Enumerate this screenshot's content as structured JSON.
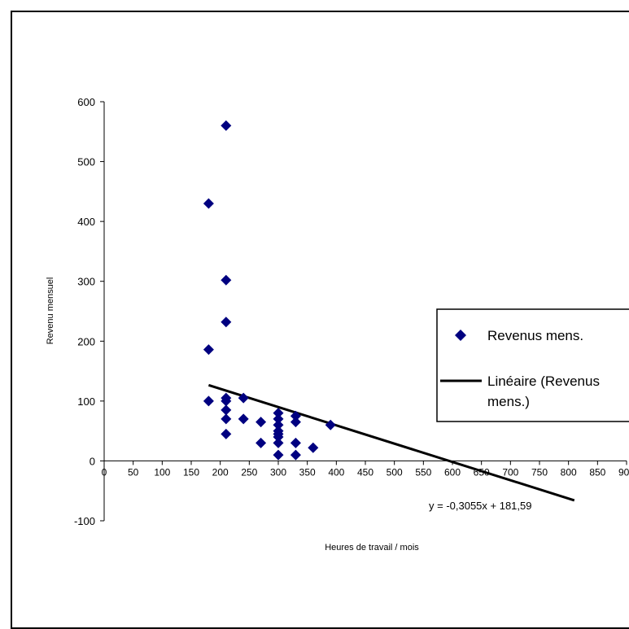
{
  "chart_data": {
    "type": "scatter",
    "xlabel": "Heures de travail / mois",
    "ylabel": "Revenu mensuel",
    "xlim": [
      0,
      900
    ],
    "ylim": [
      -100,
      600
    ],
    "x_ticks": [
      "0",
      "50",
      "100",
      "150",
      "200",
      "250",
      "300",
      "350",
      "400",
      "450",
      "500",
      "550",
      "600",
      "650",
      "700",
      "750",
      "800",
      "850",
      "900"
    ],
    "y_ticks": [
      "-100",
      "0",
      "100",
      "200",
      "300",
      "400",
      "500",
      "600"
    ],
    "grid": false,
    "legend_position": "right",
    "series": [
      {
        "name": "Revenus mens.",
        "color": "#000080",
        "marker": "diamond",
        "points": [
          [
            210,
            560
          ],
          [
            180,
            430
          ],
          [
            210,
            302
          ],
          [
            210,
            232
          ],
          [
            180,
            186
          ],
          [
            180,
            100
          ],
          [
            210,
            105
          ],
          [
            210,
            100
          ],
          [
            240,
            105
          ],
          [
            210,
            85
          ],
          [
            210,
            70
          ],
          [
            240,
            70
          ],
          [
            270,
            65
          ],
          [
            210,
            45
          ],
          [
            270,
            30
          ],
          [
            300,
            80
          ],
          [
            300,
            70
          ],
          [
            300,
            60
          ],
          [
            300,
            50
          ],
          [
            300,
            45
          ],
          [
            300,
            40
          ],
          [
            300,
            30
          ],
          [
            300,
            10
          ],
          [
            330,
            75
          ],
          [
            330,
            65
          ],
          [
            330,
            30
          ],
          [
            330,
            10
          ],
          [
            360,
            22
          ],
          [
            390,
            60
          ]
        ]
      }
    ],
    "trendline": {
      "name": "Linéaire (Revenus mens.)",
      "type": "linear",
      "slope": -0.3055,
      "intercept": 181.59,
      "x_range": [
        180,
        810
      ],
      "equation": "y = -0,3055x + 181,59",
      "color": "#000000"
    }
  }
}
